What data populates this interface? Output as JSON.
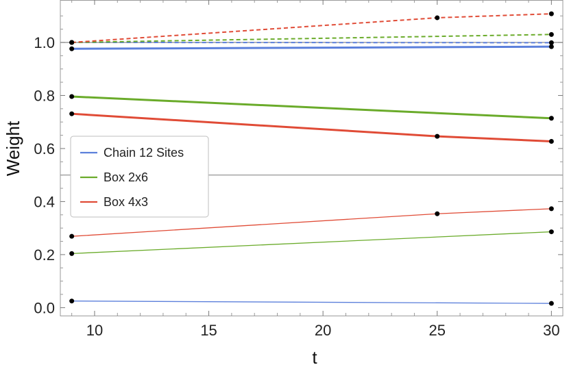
{
  "chart_data": {
    "type": "line",
    "xlabel": "t",
    "ylabel": "Weight",
    "xlim": [
      8.5,
      30.5
    ],
    "ylim": [
      -0.03,
      1.16
    ],
    "xticks": [
      10,
      15,
      20,
      25,
      30
    ],
    "yticks": [
      0.0,
      0.2,
      0.4,
      0.6,
      0.8,
      1.0
    ],
    "ytick_labels": [
      "0.0",
      "0.2",
      "0.4",
      "0.6",
      "0.8",
      "1.0"
    ],
    "reference_lines": [
      1.0,
      0.5
    ],
    "legend_placement": "middle-left",
    "series": [
      {
        "name": "Chain 12 Sites",
        "color": "#5b7fdb",
        "lines": [
          {
            "style": "dashed",
            "width": "thin",
            "points": [
              [
                9,
                1.0
              ],
              [
                30,
                0.999
              ]
            ]
          },
          {
            "style": "solid",
            "width": "thick",
            "points": [
              [
                9,
                0.976
              ],
              [
                30,
                0.984
              ]
            ]
          },
          {
            "style": "solid",
            "width": "thin",
            "points": [
              [
                9,
                0.025
              ],
              [
                30,
                0.016
              ]
            ]
          }
        ]
      },
      {
        "name": "Box 2x6",
        "color": "#6aab2a",
        "lines": [
          {
            "style": "dashed",
            "width": "thin",
            "points": [
              [
                9,
                1.0
              ],
              [
                30,
                1.03
              ]
            ]
          },
          {
            "style": "solid",
            "width": "thick",
            "points": [
              [
                9,
                0.796
              ],
              [
                30,
                0.714
              ]
            ]
          },
          {
            "style": "solid",
            "width": "thin",
            "points": [
              [
                9,
                0.204
              ],
              [
                30,
                0.286
              ]
            ]
          }
        ]
      },
      {
        "name": "Box 4x3",
        "color": "#e04b36",
        "lines": [
          {
            "style": "dashed",
            "width": "thin",
            "points": [
              [
                9,
                1.0
              ],
              [
                25,
                1.093
              ],
              [
                30,
                1.108
              ]
            ]
          },
          {
            "style": "solid",
            "width": "thick",
            "points": [
              [
                9,
                0.731
              ],
              [
                25,
                0.646
              ],
              [
                30,
                0.627
              ]
            ]
          },
          {
            "style": "solid",
            "width": "thin",
            "points": [
              [
                9,
                0.269
              ],
              [
                25,
                0.354
              ],
              [
                30,
                0.373
              ]
            ]
          }
        ]
      }
    ]
  }
}
